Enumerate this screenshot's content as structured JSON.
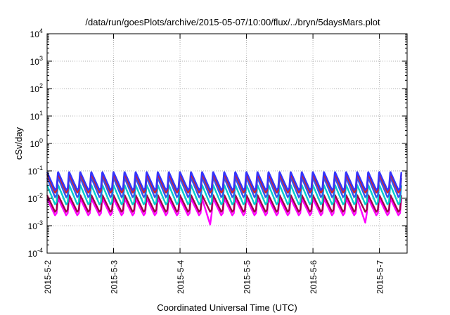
{
  "chart_data": {
    "type": "line",
    "title": "/data/run/goesPlots/archive/2015-05-07/10:00/flux/../bryn/5daysMars.plot",
    "xlabel": "Coordinated Universal Time (UTC)",
    "ylabel": "cSv/day",
    "yscale": "log",
    "ylim": [
      0.0001,
      10000
    ],
    "y_ticks": [
      {
        "base": "10",
        "exp": "-4",
        "value": 0.0001
      },
      {
        "base": "10",
        "exp": "-3",
        "value": 0.001
      },
      {
        "base": "10",
        "exp": "-2",
        "value": 0.01
      },
      {
        "base": "10",
        "exp": "-1",
        "value": 0.1
      },
      {
        "base": "10",
        "exp": "0",
        "value": 1
      },
      {
        "base": "10",
        "exp": "1",
        "value": 10
      },
      {
        "base": "10",
        "exp": "2",
        "value": 100
      },
      {
        "base": "10",
        "exp": "3",
        "value": 1000
      },
      {
        "base": "10",
        "exp": "4",
        "value": 10000
      }
    ],
    "xlim": [
      "2015-05-02 00:00",
      "2015-05-07 10:00"
    ],
    "x_ticks": [
      "2015-5-2",
      "2015-5-3",
      "2015-5-4",
      "2015-5-5",
      "2015-5-6",
      "2015-5-7"
    ],
    "grid": true,
    "periodic_pattern": {
      "period_hours": 4,
      "note_free": true
    },
    "series": [
      {
        "color": "#ff00ff",
        "peak": 0.0095,
        "trough": 0.0024
      },
      {
        "color": "#a0004a",
        "peak": 0.013,
        "trough": 0.0032
      },
      {
        "color": "#00cccc",
        "peak": 0.03,
        "trough": 0.006
      },
      {
        "color": "#3355ee",
        "peak": 0.055,
        "trough": 0.011
      },
      {
        "color": "#cc2233",
        "peak": 0.075,
        "trough": 0.016
      },
      {
        "color": "#3333ff",
        "peak": 0.09,
        "trough": 0.02
      }
    ],
    "dips": [
      {
        "series": "#ff00ff",
        "at": "2015-05-04 12:00",
        "value": 0.0011
      },
      {
        "series": "#ff00ff",
        "at": "2015-05-06 19:00",
        "value": 0.0013
      }
    ]
  }
}
